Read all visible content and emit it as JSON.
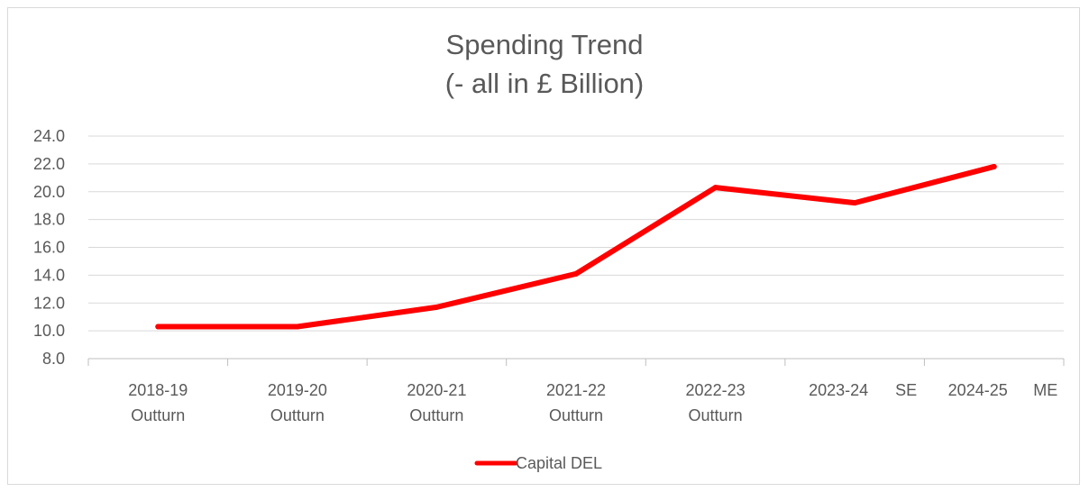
{
  "chart_data": {
    "type": "line",
    "title": [
      "Spending Trend",
      "(- all in £ Billion)"
    ],
    "categories": [
      [
        "2018-19",
        "Outturn"
      ],
      [
        "2019-20",
        "Outturn"
      ],
      [
        "2020-21",
        "Outturn"
      ],
      [
        "2021-22",
        "Outturn"
      ],
      [
        "2022-23",
        "Outturn"
      ],
      [
        "2023-24",
        "SE"
      ],
      [
        "2024-25",
        "ME"
      ]
    ],
    "series": [
      {
        "name": "Capital DEL",
        "color": "#ff0000",
        "values": [
          10.3,
          10.3,
          11.7,
          14.1,
          20.3,
          19.2,
          21.8
        ]
      }
    ],
    "ylim": [
      8.0,
      24.0
    ],
    "yticks": [
      "8.0",
      "10.0",
      "12.0",
      "14.0",
      "16.0",
      "18.0",
      "20.0",
      "22.0",
      "24.0"
    ],
    "grid": true,
    "legend_position": "bottom"
  }
}
